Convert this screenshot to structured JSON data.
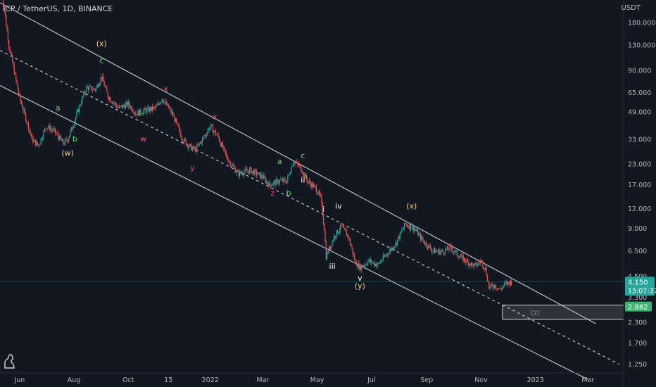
{
  "header": {
    "title": "ICP / TetherUS, 1D, BINANCE",
    "unit": "USDT"
  },
  "price_tag": {
    "price": "4.150",
    "countdown": "15:07:37",
    "target": "2.882"
  },
  "colors": {
    "background": "#131722",
    "up": "#26a69a",
    "down": "#ef5350",
    "channel": "#d1d4dc",
    "price_tag": "#26a69a",
    "target_tag": "#3cb371"
  },
  "icons": {
    "logo": "tradingview-dino-icon"
  },
  "chart_data": {
    "type": "candlestick",
    "title": "ICP / TetherUS, 1D, BINANCE",
    "yscale": "log",
    "ylim": [
      1.1,
      250
    ],
    "xlim": [
      "2021-05-10",
      "2023-04-10"
    ],
    "y_ticks": [
      "180.000",
      "130.000",
      "90.000",
      "65.000",
      "49.000",
      "33.000",
      "23.000",
      "17.000",
      "12.000",
      "9.000",
      "6.500",
      "4.500",
      "3.300",
      "2.300",
      "1.700",
      "1.250"
    ],
    "x_ticks": [
      {
        "label": "Jun",
        "date": "2021-06-01"
      },
      {
        "label": "Aug",
        "date": "2021-08-01"
      },
      {
        "label": "Oct",
        "date": "2021-10-01"
      },
      {
        "label": "15",
        "date": "2021-11-15"
      },
      {
        "label": "2022",
        "date": "2022-01-01"
      },
      {
        "label": "Mar",
        "date": "2022-03-01"
      },
      {
        "label": "May",
        "date": "2022-05-01"
      },
      {
        "label": "Jul",
        "date": "2022-07-01"
      },
      {
        "label": "Sep",
        "date": "2022-09-01"
      },
      {
        "label": "Nov",
        "date": "2022-11-01"
      },
      {
        "label": "2023",
        "date": "2023-01-01"
      },
      {
        "label": "Mar",
        "date": "2023-03-01"
      }
    ],
    "price_path": [
      [
        "2021-05-12",
        290
      ],
      [
        "2021-05-20",
        130
      ],
      [
        "2021-06-01",
        60
      ],
      [
        "2021-06-08",
        45
      ],
      [
        "2021-06-15",
        33
      ],
      [
        "2021-06-22",
        30
      ],
      [
        "2021-07-01",
        40
      ],
      [
        "2021-07-10",
        37
      ],
      [
        "2021-07-20",
        31
      ],
      [
        "2021-07-25",
        33
      ],
      [
        "2021-08-01",
        42
      ],
      [
        "2021-08-08",
        55
      ],
      [
        "2021-08-15",
        70
      ],
      [
        "2021-08-25",
        68
      ],
      [
        "2021-09-01",
        82
      ],
      [
        "2021-09-08",
        62
      ],
      [
        "2021-09-20",
        52
      ],
      [
        "2021-10-01",
        55
      ],
      [
        "2021-10-10",
        48
      ],
      [
        "2021-10-20",
        50
      ],
      [
        "2021-11-01",
        52
      ],
      [
        "2021-11-08",
        60
      ],
      [
        "2021-11-20",
        47
      ],
      [
        "2021-12-01",
        33
      ],
      [
        "2021-12-08",
        30
      ],
      [
        "2021-12-15",
        28
      ],
      [
        "2021-12-25",
        34
      ],
      [
        "2022-01-01",
        40
      ],
      [
        "2022-01-10",
        34
      ],
      [
        "2022-01-20",
        25
      ],
      [
        "2022-02-01",
        20
      ],
      [
        "2022-02-15",
        21
      ],
      [
        "2022-03-01",
        19
      ],
      [
        "2022-03-08",
        17
      ],
      [
        "2022-03-20",
        18
      ],
      [
        "2022-03-28",
        18
      ],
      [
        "2022-04-04",
        24
      ],
      [
        "2022-04-12",
        22
      ],
      [
        "2022-04-20",
        18
      ],
      [
        "2022-04-30",
        16
      ],
      [
        "2022-05-05",
        14
      ],
      [
        "2022-05-09",
        9
      ],
      [
        "2022-05-11",
        6
      ],
      [
        "2022-05-20",
        8
      ],
      [
        "2022-05-28",
        9.2
      ],
      [
        "2022-06-05",
        8
      ],
      [
        "2022-06-13",
        5.5
      ],
      [
        "2022-06-18",
        5.1
      ],
      [
        "2022-06-28",
        5.6
      ],
      [
        "2022-07-08",
        5.3
      ],
      [
        "2022-07-18",
        6.2
      ],
      [
        "2022-07-28",
        7.2
      ],
      [
        "2022-08-08",
        9.6
      ],
      [
        "2022-08-18",
        9
      ],
      [
        "2022-08-28",
        7.5
      ],
      [
        "2022-09-08",
        6.5
      ],
      [
        "2022-09-18",
        6.4
      ],
      [
        "2022-09-28",
        6.8
      ],
      [
        "2022-10-05",
        6.2
      ],
      [
        "2022-10-15",
        5.6
      ],
      [
        "2022-10-25",
        5.2
      ],
      [
        "2022-11-01",
        5.6
      ],
      [
        "2022-11-06",
        5.0
      ],
      [
        "2022-11-10",
        3.8
      ],
      [
        "2022-11-16",
        3.95
      ],
      [
        "2022-11-22",
        3.7
      ],
      [
        "2022-11-28",
        4.0
      ],
      [
        "2022-12-05",
        4.15
      ]
    ],
    "channel": {
      "upper": [
        [
          "2021-05-10",
          240
        ],
        [
          "2023-03-10",
          2.25
        ]
      ],
      "middle": [
        [
          "2021-05-10",
          120
        ],
        [
          "2023-04-05",
          1.25
        ]
      ],
      "lower": [
        [
          "2021-05-10",
          72
        ],
        [
          "2023-03-01",
          1.0
        ]
      ]
    },
    "zone": {
      "from": "2022-11-25",
      "to": "2023-04-10",
      "high": 2.95,
      "low": 2.4,
      "label": "(z)",
      "label_date": "2023-01-01"
    },
    "price_line": 4.15,
    "annotations": [
      {
        "text": "(w)",
        "date": "2021-07-25",
        "price": 26,
        "color": "#f7c77a"
      },
      {
        "text": "(x)",
        "date": "2021-09-01",
        "price": 128,
        "color": "#f7c77a"
      },
      {
        "text": "c",
        "date": "2021-09-01",
        "price": 100,
        "color": "#6bd66b"
      },
      {
        "text": "a",
        "date": "2021-07-14",
        "price": 50,
        "color": "#6bd66b"
      },
      {
        "text": "b",
        "date": "2021-08-02",
        "price": 32,
        "color": "#6bd66b"
      },
      {
        "text": "x",
        "date": "2021-11-12",
        "price": 66,
        "color": "#ef5350"
      },
      {
        "text": "w",
        "date": "2021-10-18",
        "price": 32,
        "color": "#ef5350"
      },
      {
        "text": "x",
        "date": "2022-01-06",
        "price": 44,
        "color": "#ef5350"
      },
      {
        "text": "y",
        "date": "2021-12-12",
        "price": 21,
        "color": "#ef5350"
      },
      {
        "text": "z",
        "date": "2022-03-12",
        "price": 14.5,
        "color": "#ef5350"
      },
      {
        "text": "a",
        "date": "2022-03-20",
        "price": 23,
        "color": "#6bd66b"
      },
      {
        "text": "b",
        "date": "2022-03-30",
        "price": 14.5,
        "color": "#6bd66b"
      },
      {
        "text": "c",
        "date": "2022-04-15",
        "price": 25,
        "color": "#6bd66b"
      },
      {
        "text": "ii",
        "date": "2022-04-15",
        "price": 17.5,
        "color": "#ffffff"
      },
      {
        "text": "i",
        "date": "2022-05-08",
        "price": 11.5,
        "color": "#ffffff"
      },
      {
        "text": "iv",
        "date": "2022-05-25",
        "price": 12,
        "color": "#ffffff"
      },
      {
        "text": "iii",
        "date": "2022-05-18",
        "price": 5.0,
        "color": "#ffffff"
      },
      {
        "text": "v",
        "date": "2022-06-18",
        "price": 4.2,
        "color": "#ffffff"
      },
      {
        "text": "(y)",
        "date": "2022-06-18",
        "price": 3.75,
        "color": "#f7c77a"
      },
      {
        "text": "(x)",
        "date": "2022-08-15",
        "price": 12,
        "color": "#f7c77a"
      }
    ]
  }
}
